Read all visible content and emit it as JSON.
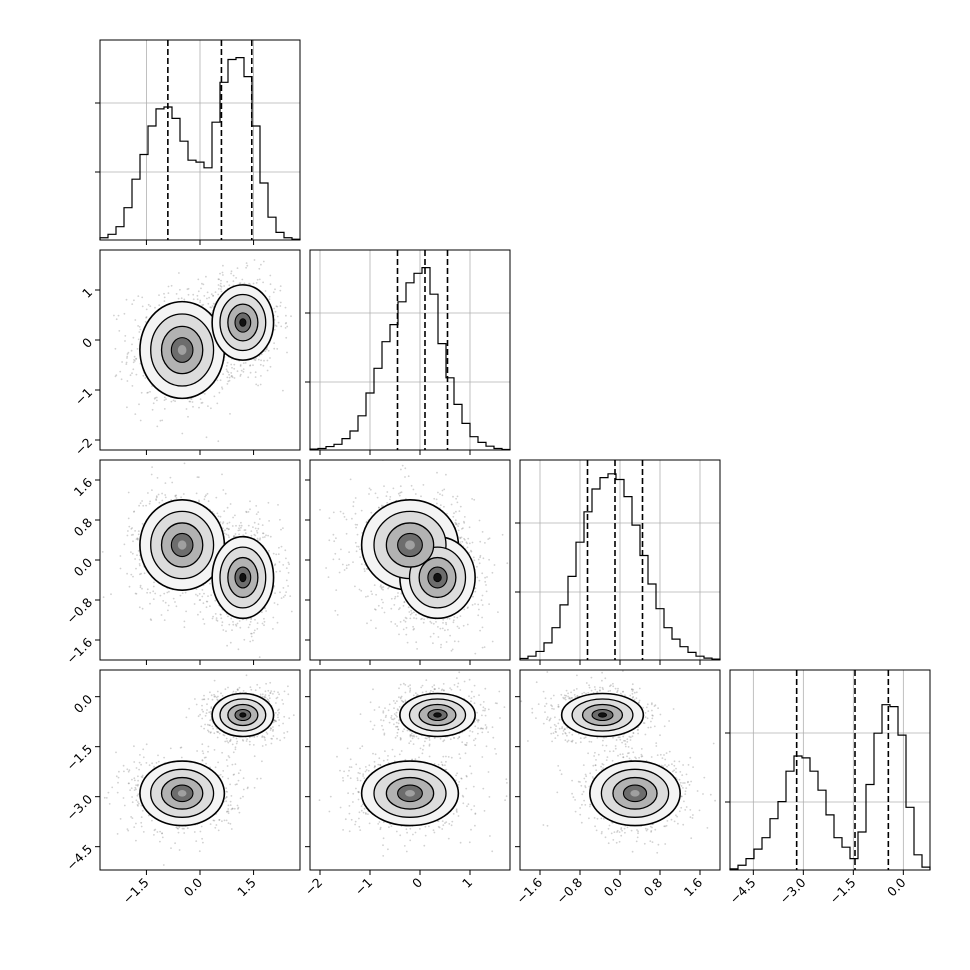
{
  "chart_data": {
    "type": "corner",
    "grid": true,
    "parameters": [
      {
        "range": [
          -2.8,
          2.8
        ],
        "ticks": [
          -1.5,
          0.0,
          1.5
        ],
        "tick_labels": [
          "−1.5",
          "0.0",
          "1.5"
        ],
        "quantiles": [
          -0.9,
          0.6,
          1.45
        ],
        "hist": [
          0.012,
          0.03,
          0.07,
          0.17,
          0.32,
          0.45,
          0.6,
          0.69,
          0.7,
          0.64,
          0.52,
          0.42,
          0.41,
          0.38,
          0.62,
          0.83,
          0.95,
          0.96,
          0.86,
          0.6,
          0.3,
          0.12,
          0.04,
          0.012,
          0.004
        ]
      },
      {
        "range": [
          -2.2,
          1.8
        ],
        "ticks": [
          -2,
          -1,
          0,
          1
        ],
        "tick_labels": [
          "−2",
          "−1",
          "0",
          "1"
        ],
        "quantiles": [
          -0.45,
          0.1,
          0.55
        ],
        "hist": [
          0.005,
          0.008,
          0.018,
          0.03,
          0.06,
          0.1,
          0.18,
          0.3,
          0.43,
          0.57,
          0.66,
          0.78,
          0.88,
          0.93,
          0.96,
          0.82,
          0.56,
          0.38,
          0.24,
          0.14,
          0.07,
          0.04,
          0.02,
          0.008,
          0.003
        ]
      },
      {
        "range": [
          -2.0,
          2.0
        ],
        "ticks": [
          -1.6,
          -0.8,
          0.0,
          0.8,
          1.6
        ],
        "tick_labels": [
          "−1.6",
          "−0.8",
          "0.0",
          "0.8",
          "1.6"
        ],
        "quantiles": [
          -0.65,
          -0.1,
          0.45
        ],
        "hist": [
          0.008,
          0.02,
          0.045,
          0.09,
          0.17,
          0.29,
          0.44,
          0.62,
          0.78,
          0.9,
          0.96,
          0.98,
          0.95,
          0.86,
          0.71,
          0.55,
          0.4,
          0.27,
          0.17,
          0.11,
          0.07,
          0.04,
          0.02,
          0.01,
          0.005
        ]
      },
      {
        "range": [
          -5.2,
          0.8
        ],
        "ticks": [
          -4.5,
          -3.0,
          -1.5,
          0.0
        ],
        "tick_labels": [
          "−4.5",
          "−3.0",
          "−1.5",
          "0.0"
        ],
        "quantiles": [
          -3.2,
          -1.45,
          -0.45
        ],
        "hist": [
          0.006,
          0.025,
          0.06,
          0.11,
          0.17,
          0.27,
          0.36,
          0.52,
          0.6,
          0.59,
          0.52,
          0.42,
          0.29,
          0.17,
          0.12,
          0.06,
          0.2,
          0.45,
          0.72,
          0.87,
          0.86,
          0.71,
          0.33,
          0.08,
          0.015
        ]
      }
    ],
    "modes": [
      {
        "center": [
          -0.5,
          -0.2,
          0.3,
          -2.9
        ],
        "sigma": [
          0.55,
          0.45,
          0.42,
          0.45
        ]
      },
      {
        "center": [
          1.2,
          0.35,
          -0.35,
          -0.55
        ],
        "sigma": [
          0.4,
          0.35,
          0.38,
          0.3
        ]
      }
    ]
  }
}
